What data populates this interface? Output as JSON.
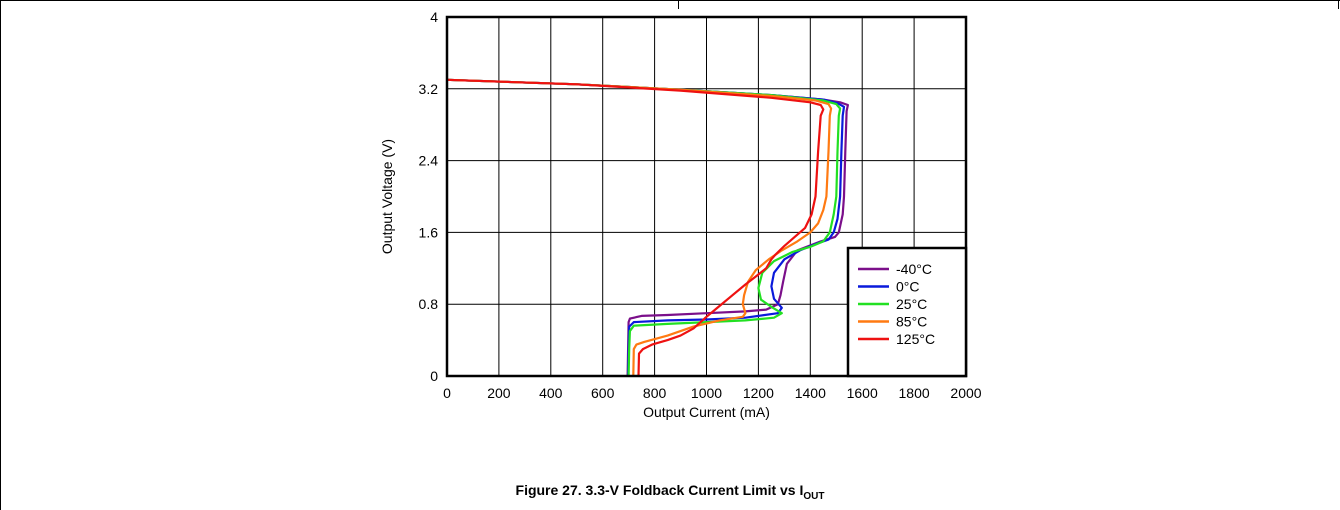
{
  "caption": {
    "main": "Figure 27. 3.3-V Foldback Current Limit vs I",
    "sub": "OUT"
  },
  "chart_data": {
    "type": "line",
    "xlabel": "Output Current (mA)",
    "ylabel": "Output Voltage (V)",
    "xlim": [
      0,
      2000
    ],
    "ylim": [
      0,
      4
    ],
    "x_ticks": [
      "0",
      "200",
      "400",
      "600",
      "800",
      "1000",
      "1200",
      "1400",
      "1600",
      "1800",
      "2000"
    ],
    "y_ticks": [
      "0",
      "0.8",
      "1.6",
      "2.4",
      "3.2",
      "4"
    ],
    "grid": true,
    "legend_position": "bottom-right",
    "series": [
      {
        "name": "-40°C",
        "color": "#7b0f8a",
        "points": [
          [
            0,
            3.3
          ],
          [
            500,
            3.25
          ],
          [
            900,
            3.19
          ],
          [
            1250,
            3.13
          ],
          [
            1450,
            3.08
          ],
          [
            1515,
            3.05
          ],
          [
            1545,
            3.02
          ],
          [
            1540,
            2.95
          ],
          [
            1535,
            2.5
          ],
          [
            1530,
            2.0
          ],
          [
            1525,
            1.8
          ],
          [
            1510,
            1.6
          ],
          [
            1495,
            1.55
          ],
          [
            1440,
            1.5
          ],
          [
            1395,
            1.45
          ],
          [
            1350,
            1.4
          ],
          [
            1310,
            1.25
          ],
          [
            1295,
            1.05
          ],
          [
            1285,
            0.9
          ],
          [
            1275,
            0.8
          ],
          [
            1230,
            0.74
          ],
          [
            1150,
            0.72
          ],
          [
            1000,
            0.7
          ],
          [
            850,
            0.68
          ],
          [
            750,
            0.67
          ],
          [
            705,
            0.64
          ],
          [
            700,
            0.6
          ],
          [
            698,
            0.3
          ],
          [
            696,
            0.0
          ]
        ]
      },
      {
        "name": "0°C",
        "color": "#0a1adb",
        "points": [
          [
            0,
            3.3
          ],
          [
            500,
            3.25
          ],
          [
            900,
            3.19
          ],
          [
            1250,
            3.13
          ],
          [
            1450,
            3.08
          ],
          [
            1505,
            3.04
          ],
          [
            1530,
            3.0
          ],
          [
            1525,
            2.9
          ],
          [
            1520,
            2.5
          ],
          [
            1515,
            2.0
          ],
          [
            1505,
            1.75
          ],
          [
            1490,
            1.6
          ],
          [
            1470,
            1.52
          ],
          [
            1420,
            1.47
          ],
          [
            1360,
            1.4
          ],
          [
            1300,
            1.3
          ],
          [
            1260,
            1.15
          ],
          [
            1250,
            1.0
          ],
          [
            1260,
            0.86
          ],
          [
            1290,
            0.76
          ],
          [
            1275,
            0.7
          ],
          [
            1150,
            0.65
          ],
          [
            1000,
            0.63
          ],
          [
            850,
            0.62
          ],
          [
            720,
            0.6
          ],
          [
            702,
            0.55
          ],
          [
            700,
            0.3
          ],
          [
            698,
            0.0
          ]
        ]
      },
      {
        "name": "25°C",
        "color": "#22e022",
        "points": [
          [
            0,
            3.3
          ],
          [
            500,
            3.25
          ],
          [
            900,
            3.19
          ],
          [
            1250,
            3.13
          ],
          [
            1450,
            3.07
          ],
          [
            1500,
            3.03
          ],
          [
            1515,
            2.98
          ],
          [
            1510,
            2.9
          ],
          [
            1505,
            2.5
          ],
          [
            1500,
            2.0
          ],
          [
            1490,
            1.8
          ],
          [
            1475,
            1.6
          ],
          [
            1450,
            1.5
          ],
          [
            1400,
            1.44
          ],
          [
            1330,
            1.38
          ],
          [
            1260,
            1.28
          ],
          [
            1215,
            1.15
          ],
          [
            1200,
            0.98
          ],
          [
            1210,
            0.85
          ],
          [
            1250,
            0.77
          ],
          [
            1290,
            0.7
          ],
          [
            1260,
            0.65
          ],
          [
            1150,
            0.62
          ],
          [
            1000,
            0.6
          ],
          [
            850,
            0.58
          ],
          [
            720,
            0.56
          ],
          [
            705,
            0.5
          ],
          [
            702,
            0.3
          ],
          [
            700,
            0.0
          ]
        ]
      },
      {
        "name": "85°C",
        "color": "#ff7a12",
        "points": [
          [
            0,
            3.3
          ],
          [
            500,
            3.25
          ],
          [
            900,
            3.19
          ],
          [
            1250,
            3.12
          ],
          [
            1420,
            3.07
          ],
          [
            1470,
            3.03
          ],
          [
            1480,
            2.98
          ],
          [
            1475,
            2.9
          ],
          [
            1470,
            2.5
          ],
          [
            1462,
            2.0
          ],
          [
            1450,
            1.85
          ],
          [
            1430,
            1.7
          ],
          [
            1400,
            1.6
          ],
          [
            1350,
            1.5
          ],
          [
            1290,
            1.4
          ],
          [
            1240,
            1.3
          ],
          [
            1190,
            1.18
          ],
          [
            1160,
            1.05
          ],
          [
            1145,
            0.9
          ],
          [
            1140,
            0.8
          ],
          [
            1150,
            0.7
          ],
          [
            1140,
            0.66
          ],
          [
            1050,
            0.62
          ],
          [
            950,
            0.55
          ],
          [
            850,
            0.45
          ],
          [
            760,
            0.38
          ],
          [
            730,
            0.35
          ],
          [
            720,
            0.3
          ],
          [
            718,
            0.0
          ]
        ]
      },
      {
        "name": "125°C",
        "color": "#ee1111",
        "points": [
          [
            0,
            3.3
          ],
          [
            500,
            3.25
          ],
          [
            900,
            3.18
          ],
          [
            1250,
            3.1
          ],
          [
            1400,
            3.05
          ],
          [
            1440,
            3.02
          ],
          [
            1450,
            2.97
          ],
          [
            1440,
            2.9
          ],
          [
            1430,
            2.5
          ],
          [
            1420,
            2.0
          ],
          [
            1405,
            1.8
          ],
          [
            1380,
            1.65
          ],
          [
            1340,
            1.55
          ],
          [
            1300,
            1.45
          ],
          [
            1265,
            1.35
          ],
          [
            1250,
            1.3
          ],
          [
            1230,
            1.2
          ],
          [
            1195,
            1.12
          ],
          [
            1150,
            1.02
          ],
          [
            1100,
            0.9
          ],
          [
            1050,
            0.78
          ],
          [
            1000,
            0.66
          ],
          [
            950,
            0.53
          ],
          [
            900,
            0.45
          ],
          [
            850,
            0.4
          ],
          [
            790,
            0.35
          ],
          [
            755,
            0.3
          ],
          [
            740,
            0.25
          ],
          [
            738,
            0.0
          ]
        ]
      }
    ]
  }
}
